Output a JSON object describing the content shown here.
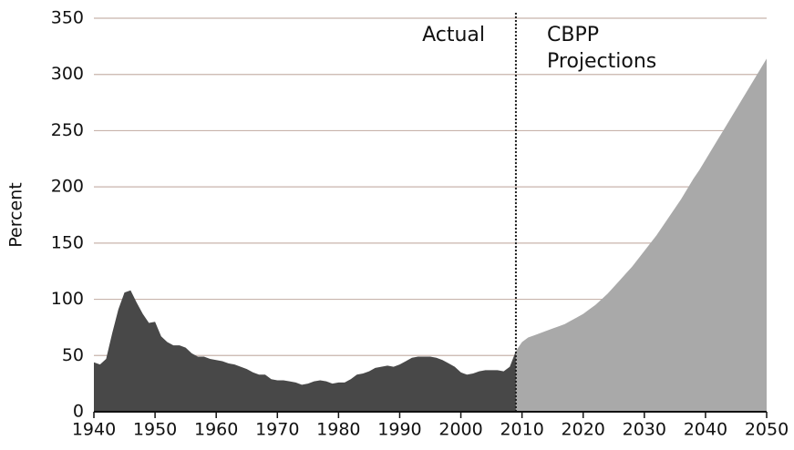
{
  "chart_data": {
    "type": "area",
    "ylabel": "Percent",
    "annotations": [
      "Actual",
      "CBPP",
      "Projections"
    ],
    "divider": 2009,
    "x": [
      1940,
      1941,
      1942,
      1943,
      1944,
      1945,
      1946,
      1947,
      1948,
      1949,
      1950,
      1951,
      1952,
      1953,
      1954,
      1955,
      1956,
      1957,
      1958,
      1959,
      1960,
      1961,
      1962,
      1963,
      1964,
      1965,
      1966,
      1967,
      1968,
      1969,
      1970,
      1971,
      1972,
      1973,
      1974,
      1975,
      1976,
      1977,
      1978,
      1979,
      1980,
      1981,
      1982,
      1983,
      1984,
      1985,
      1986,
      1987,
      1988,
      1989,
      1990,
      1991,
      1992,
      1993,
      1994,
      1995,
      1996,
      1997,
      1998,
      1999,
      2000,
      2001,
      2002,
      2003,
      2004,
      2005,
      2006,
      2007,
      2008,
      2009,
      2010,
      2011,
      2012,
      2013,
      2014,
      2015,
      2016,
      2017,
      2018,
      2019,
      2020,
      2021,
      2022,
      2023,
      2024,
      2025,
      2026,
      2027,
      2028,
      2029,
      2030,
      2031,
      2032,
      2033,
      2034,
      2035,
      2036,
      2037,
      2038,
      2039,
      2040,
      2041,
      2042,
      2043,
      2044,
      2045,
      2046,
      2047,
      2048,
      2049,
      2050
    ],
    "series": [
      {
        "color": "#484848",
        "values": [
          44,
          42,
          47,
          70,
          91,
          106,
          108,
          97,
          87,
          79,
          80,
          67,
          62,
          59,
          59,
          57,
          52,
          49,
          49,
          47,
          46,
          45,
          43,
          42,
          40,
          38,
          35,
          33,
          33,
          29,
          28,
          28,
          27,
          26,
          24,
          25,
          27,
          28,
          27,
          25,
          26,
          26,
          29,
          33,
          34,
          36,
          39,
          40,
          41,
          40,
          42,
          45,
          48,
          49,
          49,
          49,
          48,
          46,
          43,
          40,
          35,
          33,
          34,
          36,
          37,
          37,
          37,
          36,
          40,
          54,
          null,
          null,
          null,
          null,
          null,
          null,
          null,
          null,
          null,
          null,
          null,
          null,
          null,
          null,
          null,
          null,
          null,
          null,
          null,
          null,
          null,
          null,
          null,
          null,
          null,
          null,
          null,
          null,
          null,
          null,
          null,
          null,
          null,
          null,
          null,
          null,
          null,
          null,
          null,
          null,
          null
        ]
      },
      {
        "color": "#a9a9a9",
        "values": [
          null,
          null,
          null,
          null,
          null,
          null,
          null,
          null,
          null,
          null,
          null,
          null,
          null,
          null,
          null,
          null,
          null,
          null,
          null,
          null,
          null,
          null,
          null,
          null,
          null,
          null,
          null,
          null,
          null,
          null,
          null,
          null,
          null,
          null,
          null,
          null,
          null,
          null,
          null,
          null,
          null,
          null,
          null,
          null,
          null,
          null,
          null,
          null,
          null,
          null,
          null,
          null,
          null,
          null,
          null,
          null,
          null,
          null,
          null,
          null,
          null,
          null,
          null,
          null,
          null,
          null,
          null,
          null,
          null,
          54,
          62,
          66,
          68,
          70,
          72,
          74,
          76,
          78,
          81,
          84,
          87,
          91,
          95,
          100,
          105,
          111,
          117,
          123,
          129,
          136,
          143,
          150,
          157,
          165,
          173,
          181,
          189,
          198,
          207,
          215,
          224,
          233,
          242,
          251,
          260,
          269,
          278,
          287,
          296,
          305,
          314
        ]
      }
    ],
    "xlim": [
      1940,
      2050
    ],
    "xticks": [
      1940,
      1950,
      1960,
      1970,
      1980,
      1990,
      2000,
      2010,
      2020,
      2030,
      2040,
      2050
    ],
    "ylim": [
      0,
      350
    ],
    "yticks": [
      0,
      50,
      100,
      150,
      200,
      250,
      300,
      350
    ],
    "grid": true,
    "grid_color": "#c8b4ac"
  }
}
